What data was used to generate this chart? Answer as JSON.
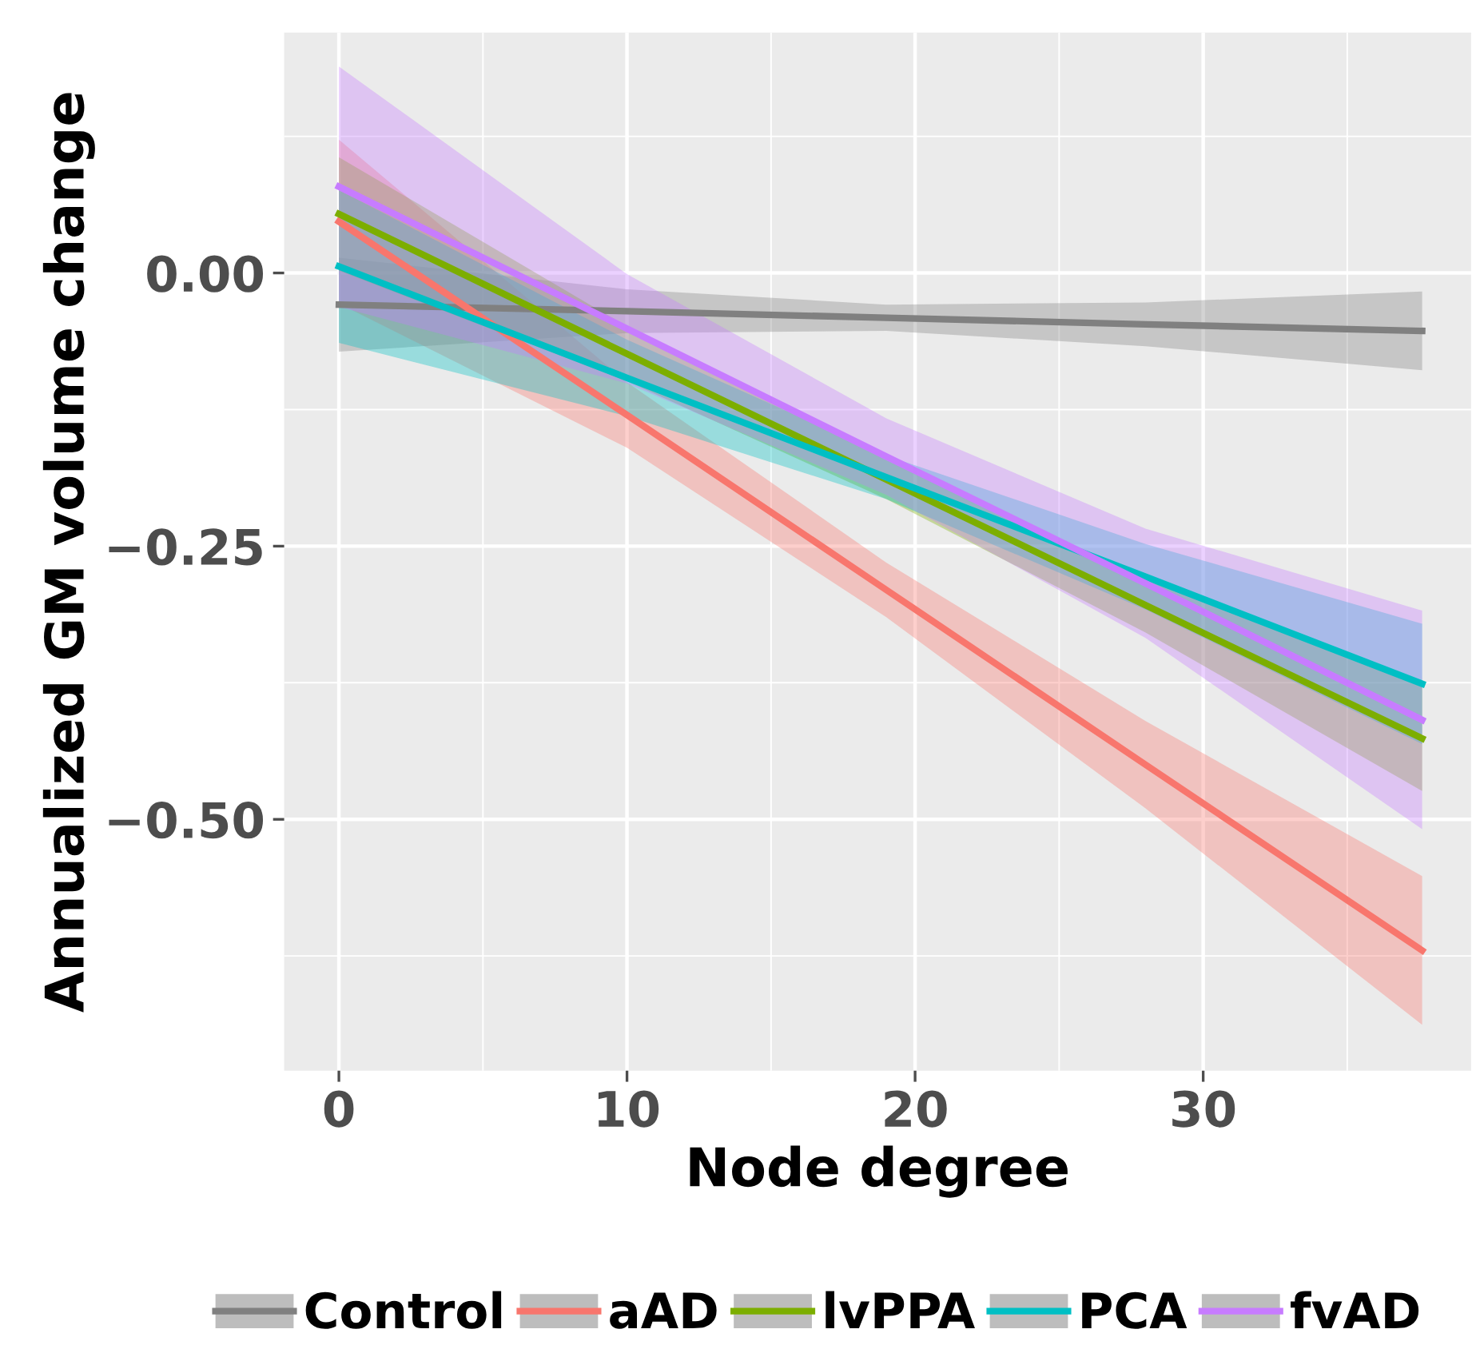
{
  "chart_data": {
    "type": "line",
    "xlabel": "Node degree",
    "ylabel": "Annualized GM volume change",
    "x": [
      0,
      10,
      19,
      28,
      37.6
    ],
    "xlim": [
      -1.9,
      39.3
    ],
    "ylim": [
      -0.73,
      0.22
    ],
    "xticks": [
      0,
      10,
      20,
      30
    ],
    "yticks": [
      {
        "value": 0,
        "label": "0.00"
      },
      {
        "value": -0.25,
        "label": "−0.25"
      },
      {
        "value": -0.5,
        "label": "−0.50"
      }
    ],
    "grid": true,
    "legend": "bottom",
    "series": [
      {
        "name": "Control",
        "color": "#808080",
        "values": [
          -0.029,
          -0.035,
          -0.041,
          -0.047,
          -0.053
        ],
        "lower": [
          -0.072,
          -0.055,
          -0.053,
          -0.067,
          -0.089
        ],
        "upper": [
          0.014,
          -0.015,
          -0.029,
          -0.027,
          -0.017
        ]
      },
      {
        "name": "aAD",
        "color": "#f8766d",
        "values": [
          0.047,
          -0.13,
          -0.29,
          -0.45,
          -0.62
        ],
        "lower": [
          -0.028,
          -0.16,
          -0.315,
          -0.49,
          -0.688
        ],
        "upper": [
          0.122,
          -0.1,
          -0.265,
          -0.41,
          -0.552
        ]
      },
      {
        "name": "lvPPA",
        "color": "#7cae00",
        "values": [
          0.054,
          -0.074,
          -0.189,
          -0.304,
          -0.426
        ],
        "lower": [
          0.002,
          -0.099,
          -0.207,
          -0.329,
          -0.474
        ],
        "upper": [
          0.106,
          -0.049,
          -0.171,
          -0.279,
          -0.378
        ]
      },
      {
        "name": "PCA",
        "color": "#00bfc4",
        "values": [
          0.006,
          -0.096,
          -0.187,
          -0.278,
          -0.376
        ],
        "lower": [
          -0.064,
          -0.131,
          -0.207,
          -0.308,
          -0.431
        ],
        "upper": [
          0.076,
          -0.061,
          -0.167,
          -0.248,
          -0.321
        ]
      },
      {
        "name": "fvAD",
        "color": "#c77cff",
        "values": [
          0.079,
          -0.051,
          -0.168,
          -0.284,
          -0.409
        ],
        "lower": [
          -0.031,
          -0.101,
          -0.203,
          -0.334,
          -0.509
        ],
        "upper": [
          0.189,
          -0.001,
          -0.133,
          -0.234,
          -0.309
        ]
      }
    ]
  }
}
